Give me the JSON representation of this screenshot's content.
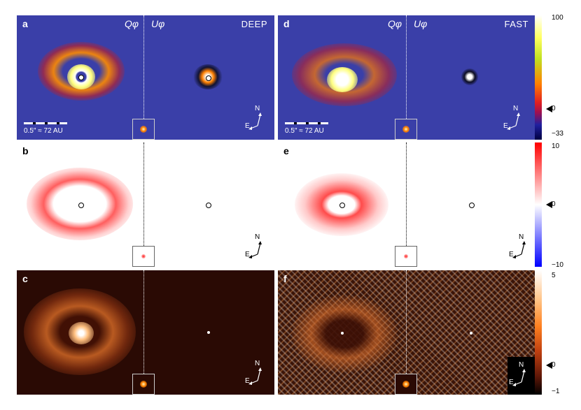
{
  "panels": {
    "a": {
      "letter": "a",
      "q_label": "Qφ",
      "u_label": "Uφ",
      "mode": "DEEP",
      "scale": "0.5″ ≈ 72 AU",
      "compass_n": "N",
      "compass_e": "E"
    },
    "b": {
      "letter": "b",
      "compass_n": "N",
      "compass_e": "E"
    },
    "c": {
      "letter": "c",
      "compass_n": "N",
      "compass_e": "E"
    },
    "d": {
      "letter": "d",
      "q_label": "Qφ",
      "u_label": "Uφ",
      "mode": "FAST",
      "scale": "0.5″ ≈ 72 AU",
      "compass_n": "N",
      "compass_e": "E"
    },
    "e": {
      "letter": "e",
      "compass_n": "N",
      "compass_e": "E"
    },
    "f": {
      "letter": "f",
      "compass_n": "N",
      "compass_e": "E"
    }
  },
  "colorbars": {
    "top": {
      "max": "100",
      "zero": "0",
      "min": "−33",
      "colors": [
        "#ffffff",
        "#ffff60",
        "#c0e020",
        "#ff8000",
        "#e02020",
        "#a01050",
        "#2020a0",
        "#000040"
      ]
    },
    "middle": {
      "max": "10",
      "zero": "0",
      "min": "−10",
      "colors": [
        "#ff0000",
        "#ffffff",
        "#0000ff"
      ]
    },
    "bottom": {
      "max": "5",
      "zero": "0",
      "min": "−1",
      "colors": [
        "#ffffff",
        "#ffc080",
        "#ff8020",
        "#c04010",
        "#601808",
        "#000000"
      ]
    }
  }
}
